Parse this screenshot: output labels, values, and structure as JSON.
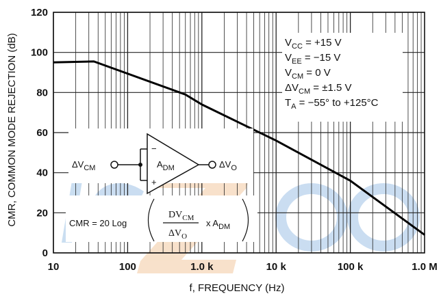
{
  "chart_data": {
    "type": "line",
    "xscale": "log",
    "xlim": [
      10,
      1000000
    ],
    "ylim": [
      0,
      120
    ],
    "xlabel": "f, FREQUENCY (Hz)",
    "ylabel": "CMR, COMMON MODE REJECTION (dB)",
    "x_tick_labels": [
      "10",
      "100",
      "1.0 k",
      "10 k",
      "100 k",
      "1.0 M"
    ],
    "x_tick_values": [
      10,
      100,
      1000,
      10000,
      100000,
      1000000
    ],
    "y_ticks": [
      0,
      20,
      40,
      60,
      80,
      100,
      120
    ],
    "grid": true,
    "series": [
      {
        "x": [
          10,
          35,
          600,
          1000,
          10000,
          100000,
          1000000
        ],
        "y": [
          95,
          95.5,
          79,
          74,
          56,
          36,
          9
        ]
      }
    ],
    "conditions": [
      {
        "main": "V",
        "sub": "CC",
        "rest": " = +15 V"
      },
      {
        "main": "V",
        "sub": "EE",
        "rest": " = −15 V"
      },
      {
        "main": "V",
        "sub": "CM",
        "rest": " = 0 V"
      },
      {
        "main": "ΔV",
        "sub": "CM",
        "rest": " = ±1.5 V"
      },
      {
        "main": "T",
        "sub": "A",
        "rest": " = −55° to +125°C"
      }
    ],
    "circuit": {
      "input_main": "ΔV",
      "input_sub": "CM",
      "output_main": "ΔV",
      "output_sub": "O",
      "amp_main": "A",
      "amp_sub": "DM",
      "minus": "−",
      "plus": "+"
    },
    "formula": {
      "lhs": "CMR = 20 Log",
      "num_main": "DV",
      "num_sub": "CM",
      "den_main": "ΔV",
      "den_sub": "O",
      "mult_main": "x A",
      "mult_sub": "DM"
    }
  }
}
